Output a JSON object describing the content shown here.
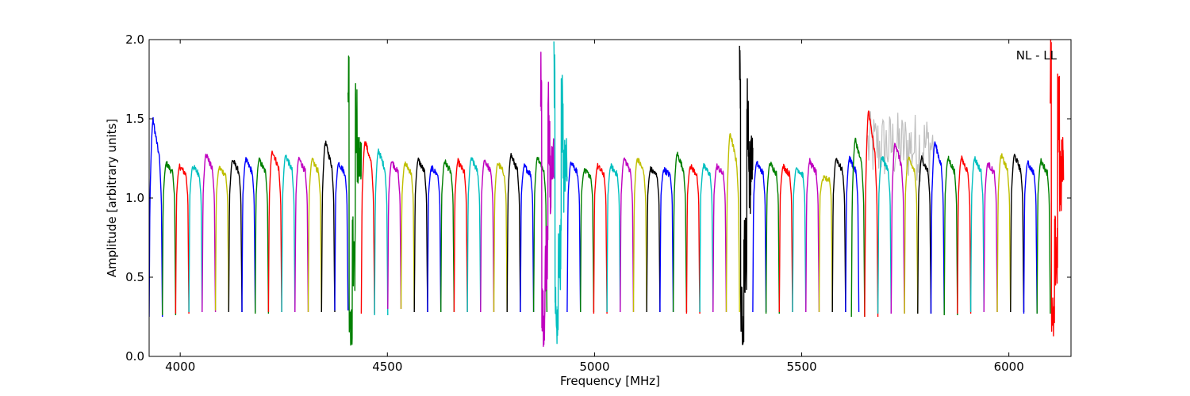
{
  "chart_data": {
    "type": "line",
    "xlabel": "Frequency [MHz]",
    "ylabel": "Amplitude [arbitrary units]",
    "xlim": [
      3925,
      6150
    ],
    "ylim": [
      0.0,
      2.0
    ],
    "grid": false,
    "annotation": "NL - LL",
    "x_ticks": [
      {
        "value": 4000,
        "label": "4000"
      },
      {
        "value": 4500,
        "label": "4500"
      },
      {
        "value": 5000,
        "label": "5000"
      },
      {
        "value": 5500,
        "label": "5500"
      },
      {
        "value": 6000,
        "label": "6000"
      }
    ],
    "y_ticks": [
      {
        "value": 0.0,
        "label": "0.0"
      },
      {
        "value": 0.5,
        "label": "0.5"
      },
      {
        "value": 1.0,
        "label": "1.0"
      },
      {
        "value": 1.5,
        "label": "1.5"
      },
      {
        "value": 2.0,
        "label": "2.0"
      }
    ],
    "colors": [
      "#0000ff",
      "#008000",
      "#ff0000",
      "#00bfbf",
      "#bf00bf",
      "#bfbf00",
      "#000000"
    ],
    "background_series_color": "#bfbfbf",
    "channel_width_mhz": 32,
    "channels": [
      {
        "start": 3925,
        "peak": 1.49,
        "min": 0.25,
        "color": "#0000ff"
      },
      {
        "start": 3957,
        "peak": 1.22,
        "min": 0.26,
        "color": "#008000"
      },
      {
        "start": 3989,
        "peak": 1.2,
        "min": 0.27,
        "color": "#ff0000"
      },
      {
        "start": 4021,
        "peak": 1.2,
        "min": 0.28,
        "color": "#00bfbf"
      },
      {
        "start": 4053,
        "peak": 1.28,
        "min": 0.28,
        "color": "#bf00bf"
      },
      {
        "start": 4085,
        "peak": 1.19,
        "min": 0.29,
        "color": "#bfbf00"
      },
      {
        "start": 4117,
        "peak": 1.24,
        "min": 0.28,
        "color": "#000000"
      },
      {
        "start": 4149,
        "peak": 1.24,
        "min": 0.28,
        "color": "#0000ff"
      },
      {
        "start": 4181,
        "peak": 1.24,
        "min": 0.27,
        "color": "#008000"
      },
      {
        "start": 4213,
        "peak": 1.3,
        "min": 0.28,
        "color": "#ff0000"
      },
      {
        "start": 4245,
        "peak": 1.27,
        "min": 0.28,
        "color": "#00bfbf"
      },
      {
        "start": 4277,
        "peak": 1.25,
        "min": 0.28,
        "color": "#bf00bf"
      },
      {
        "start": 4309,
        "peak": 1.24,
        "min": 0.28,
        "color": "#bfbf00"
      },
      {
        "start": 4341,
        "peak": 1.35,
        "min": 0.28,
        "color": "#000000"
      },
      {
        "start": 4373,
        "peak": 1.22,
        "min": 0.29,
        "color": "#0000ff"
      },
      {
        "start": 4405,
        "peak": 2.0,
        "min": 0.06,
        "color": "#008000"
      },
      {
        "start": 4437,
        "peak": 1.36,
        "min": 0.27,
        "color": "#ff0000"
      },
      {
        "start": 4469,
        "peak": 1.3,
        "min": 0.26,
        "color": "#00bfbf"
      },
      {
        "start": 4501,
        "peak": 1.23,
        "min": 0.3,
        "color": "#bf00bf"
      },
      {
        "start": 4533,
        "peak": 1.22,
        "min": 0.3,
        "color": "#bfbf00"
      },
      {
        "start": 4565,
        "peak": 1.24,
        "min": 0.28,
        "color": "#000000"
      },
      {
        "start": 4597,
        "peak": 1.19,
        "min": 0.28,
        "color": "#0000ff"
      },
      {
        "start": 4629,
        "peak": 1.23,
        "min": 0.28,
        "color": "#008000"
      },
      {
        "start": 4661,
        "peak": 1.23,
        "min": 0.28,
        "color": "#ff0000"
      },
      {
        "start": 4693,
        "peak": 1.25,
        "min": 0.28,
        "color": "#00bfbf"
      },
      {
        "start": 4725,
        "peak": 1.24,
        "min": 0.28,
        "color": "#bf00bf"
      },
      {
        "start": 4757,
        "peak": 1.22,
        "min": 0.28,
        "color": "#bfbf00"
      },
      {
        "start": 4789,
        "peak": 1.27,
        "min": 0.28,
        "color": "#000000"
      },
      {
        "start": 4821,
        "peak": 1.2,
        "min": 0.28,
        "color": "#0000ff"
      },
      {
        "start": 4853,
        "peak": 1.26,
        "min": 0.28,
        "color": "#008000"
      },
      {
        "start": 4870,
        "peak": 2.0,
        "min": 0.06,
        "color": "#bf00bf"
      },
      {
        "start": 4902,
        "peak": 2.0,
        "min": 0.07,
        "color": "#00bfbf"
      },
      {
        "start": 4934,
        "peak": 1.23,
        "min": 0.28,
        "color": "#0000ff"
      },
      {
        "start": 4966,
        "peak": 1.17,
        "min": 0.28,
        "color": "#008000"
      },
      {
        "start": 4998,
        "peak": 1.2,
        "min": 0.27,
        "color": "#ff0000"
      },
      {
        "start": 5030,
        "peak": 1.2,
        "min": 0.28,
        "color": "#00bfbf"
      },
      {
        "start": 5062,
        "peak": 1.25,
        "min": 0.28,
        "color": "#bf00bf"
      },
      {
        "start": 5094,
        "peak": 1.25,
        "min": 0.28,
        "color": "#bfbf00"
      },
      {
        "start": 5126,
        "peak": 1.18,
        "min": 0.28,
        "color": "#000000"
      },
      {
        "start": 5158,
        "peak": 1.18,
        "min": 0.28,
        "color": "#0000ff"
      },
      {
        "start": 5190,
        "peak": 1.28,
        "min": 0.28,
        "color": "#008000"
      },
      {
        "start": 5222,
        "peak": 1.2,
        "min": 0.27,
        "color": "#ff0000"
      },
      {
        "start": 5254,
        "peak": 1.2,
        "min": 0.28,
        "color": "#00bfbf"
      },
      {
        "start": 5286,
        "peak": 1.2,
        "min": 0.28,
        "color": "#bf00bf"
      },
      {
        "start": 5318,
        "peak": 1.41,
        "min": 0.28,
        "color": "#bfbf00"
      },
      {
        "start": 5350,
        "peak": 2.0,
        "min": 0.06,
        "color": "#000000"
      },
      {
        "start": 5382,
        "peak": 1.22,
        "min": 0.28,
        "color": "#0000ff"
      },
      {
        "start": 5414,
        "peak": 1.22,
        "min": 0.27,
        "color": "#008000"
      },
      {
        "start": 5446,
        "peak": 1.2,
        "min": 0.28,
        "color": "#ff0000"
      },
      {
        "start": 5478,
        "peak": 1.19,
        "min": 0.28,
        "color": "#00bfbf"
      },
      {
        "start": 5510,
        "peak": 1.23,
        "min": 0.28,
        "color": "#bf00bf"
      },
      {
        "start": 5542,
        "peak": 1.12,
        "min": 0.28,
        "color": "#bfbf00"
      },
      {
        "start": 5574,
        "peak": 1.25,
        "min": 0.28,
        "color": "#000000"
      },
      {
        "start": 5606,
        "peak": 1.25,
        "min": 0.28,
        "color": "#0000ff"
      },
      {
        "start": 5620,
        "peak": 1.37,
        "min": 0.25,
        "color": "#008000"
      },
      {
        "start": 5652,
        "peak": 1.55,
        "min": 0.25,
        "color": "#ff0000"
      },
      {
        "start": 5684,
        "peak": 1.26,
        "min": 0.27,
        "color": "#00bfbf"
      },
      {
        "start": 5716,
        "peak": 1.35,
        "min": 0.27,
        "color": "#bf00bf"
      },
      {
        "start": 5748,
        "peak": 1.25,
        "min": 0.27,
        "color": "#bfbf00"
      },
      {
        "start": 5780,
        "peak": 1.25,
        "min": 0.27,
        "color": "#000000"
      },
      {
        "start": 5812,
        "peak": 1.35,
        "min": 0.27,
        "color": "#0000ff"
      },
      {
        "start": 5844,
        "peak": 1.25,
        "min": 0.26,
        "color": "#008000"
      },
      {
        "start": 5876,
        "peak": 1.25,
        "min": 0.27,
        "color": "#ff0000"
      },
      {
        "start": 5908,
        "peak": 1.25,
        "min": 0.28,
        "color": "#00bfbf"
      },
      {
        "start": 5940,
        "peak": 1.22,
        "min": 0.28,
        "color": "#bf00bf"
      },
      {
        "start": 5972,
        "peak": 1.27,
        "min": 0.28,
        "color": "#bfbf00"
      },
      {
        "start": 6004,
        "peak": 1.27,
        "min": 0.28,
        "color": "#000000"
      },
      {
        "start": 6036,
        "peak": 1.22,
        "min": 0.27,
        "color": "#0000ff"
      },
      {
        "start": 6068,
        "peak": 1.23,
        "min": 0.27,
        "color": "#008000"
      },
      {
        "start": 6100,
        "peak": 2.0,
        "min": 0.08,
        "color": "#ff0000"
      }
    ]
  }
}
